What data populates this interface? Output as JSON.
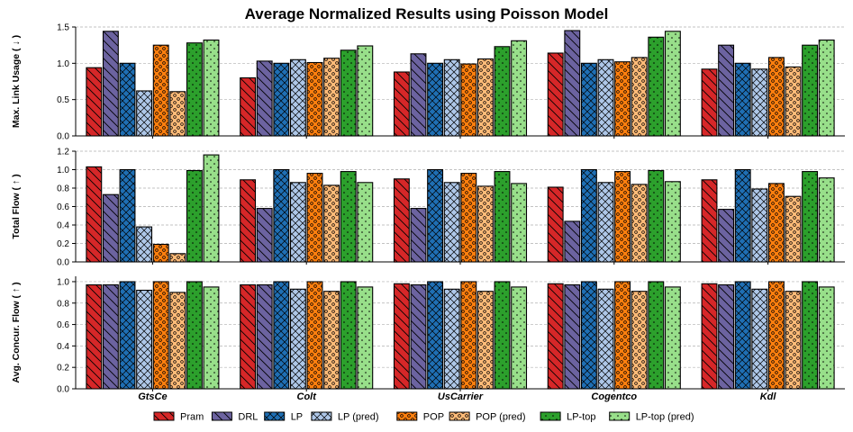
{
  "title": "Average Normalized Results using Poisson Model",
  "colors": {
    "Pram": "#d62728",
    "DRL": "#6c63a0",
    "LP": "#1f6fb4",
    "LP (pred)": "#aec7e8",
    "POP": "#ff7f0e",
    "POP (pred)": "#ffbb78",
    "LP-top": "#2ca02c",
    "LP-top (pred)": "#98df8a"
  },
  "patterns": {
    "Pram": "backslash",
    "DRL": "backslash",
    "LP": "cross",
    "LP (pred)": "cross",
    "POP": "circles",
    "POP (pred)": "circles",
    "LP-top": "dots",
    "LP-top (pred)": "dots"
  },
  "chart_data": [
    {
      "type": "bar",
      "ylabel": "Max. Link Usage ( ↓ )",
      "ylim": [
        0,
        1.5
      ],
      "yticks": [
        "0.0",
        "0.5",
        "1.0",
        "1.5"
      ],
      "grid": true,
      "categories": [
        "GtsCe",
        "Colt",
        "UsCarrier",
        "Cogentco",
        "Kdl"
      ],
      "series": [
        {
          "name": "Pram",
          "values": [
            0.94,
            0.8,
            0.88,
            1.14,
            0.92
          ]
        },
        {
          "name": "DRL",
          "values": [
            1.44,
            1.03,
            1.13,
            1.45,
            1.25
          ]
        },
        {
          "name": "LP",
          "values": [
            1.0,
            1.0,
            1.0,
            1.0,
            1.0
          ]
        },
        {
          "name": "LP (pred)",
          "values": [
            0.62,
            1.05,
            1.05,
            1.05,
            0.92
          ]
        },
        {
          "name": "POP",
          "values": [
            1.25,
            1.01,
            0.99,
            1.02,
            1.08
          ]
        },
        {
          "name": "POP (pred)",
          "values": [
            0.61,
            1.07,
            1.06,
            1.08,
            0.95
          ]
        },
        {
          "name": "LP-top",
          "values": [
            1.28,
            1.18,
            1.23,
            1.36,
            1.25
          ]
        },
        {
          "name": "LP-top (pred)",
          "values": [
            1.32,
            1.24,
            1.31,
            1.44,
            1.32
          ]
        }
      ]
    },
    {
      "type": "bar",
      "ylabel": "Total Flow ( ↑ )",
      "ylim": [
        0,
        1.2
      ],
      "yticks": [
        "0.0",
        "0.2",
        "0.4",
        "0.6",
        "0.8",
        "1.0",
        "1.2"
      ],
      "grid": true,
      "categories": [
        "GtsCe",
        "Colt",
        "UsCarrier",
        "Cogentco",
        "Kdl"
      ],
      "series": [
        {
          "name": "Pram",
          "values": [
            1.03,
            0.89,
            0.9,
            0.81,
            0.89
          ]
        },
        {
          "name": "DRL",
          "values": [
            0.73,
            0.58,
            0.58,
            0.44,
            0.57
          ]
        },
        {
          "name": "LP",
          "values": [
            1.0,
            1.0,
            1.0,
            1.0,
            1.0
          ]
        },
        {
          "name": "LP (pred)",
          "values": [
            0.38,
            0.86,
            0.86,
            0.86,
            0.79
          ]
        },
        {
          "name": "POP",
          "values": [
            0.19,
            0.96,
            0.96,
            0.98,
            0.85
          ]
        },
        {
          "name": "POP (pred)",
          "values": [
            0.09,
            0.83,
            0.82,
            0.84,
            0.71
          ]
        },
        {
          "name": "LP-top",
          "values": [
            0.99,
            0.98,
            0.98,
            0.99,
            0.98
          ]
        },
        {
          "name": "LP-top (pred)",
          "values": [
            1.16,
            0.86,
            0.85,
            0.87,
            0.91
          ]
        }
      ]
    },
    {
      "type": "bar",
      "ylabel": "Avg. Concur. Flow ( ↑ )",
      "ylim": [
        0,
        1.05
      ],
      "yticks": [
        "0.0",
        "0.2",
        "0.4",
        "0.6",
        "0.8",
        "1.0"
      ],
      "grid": true,
      "categories": [
        "GtsCe",
        "Colt",
        "UsCarrier",
        "Cogentco",
        "Kdl"
      ],
      "series": [
        {
          "name": "Pram",
          "values": [
            0.97,
            0.97,
            0.98,
            0.98,
            0.98
          ]
        },
        {
          "name": "DRL",
          "values": [
            0.97,
            0.97,
            0.97,
            0.97,
            0.97
          ]
        },
        {
          "name": "LP",
          "values": [
            1.0,
            1.0,
            1.0,
            1.0,
            1.0
          ]
        },
        {
          "name": "LP (pred)",
          "values": [
            0.92,
            0.93,
            0.93,
            0.93,
            0.93
          ]
        },
        {
          "name": "POP",
          "values": [
            1.0,
            1.0,
            1.0,
            1.0,
            1.0
          ]
        },
        {
          "name": "POP (pred)",
          "values": [
            0.9,
            0.91,
            0.91,
            0.91,
            0.91
          ]
        },
        {
          "name": "LP-top",
          "values": [
            1.0,
            1.0,
            1.0,
            1.0,
            1.0
          ]
        },
        {
          "name": "LP-top (pred)",
          "values": [
            0.95,
            0.95,
            0.95,
            0.95,
            0.95
          ]
        }
      ]
    }
  ],
  "legend": {
    "position": "bottom-center",
    "entries": [
      "Pram",
      "DRL",
      "LP",
      "LP (pred)",
      "POP",
      "POP (pred)",
      "LP-top",
      "LP-top (pred)"
    ]
  }
}
